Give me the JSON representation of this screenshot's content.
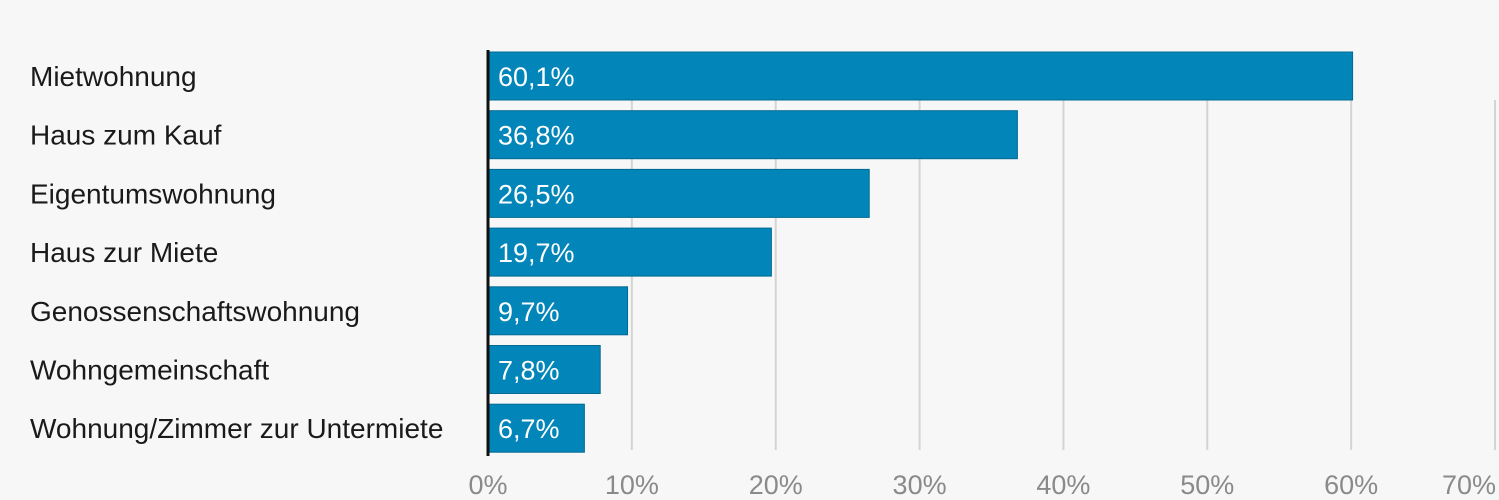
{
  "chart_data": {
    "type": "bar",
    "orientation": "horizontal",
    "categories": [
      "Mietwohnung",
      "Haus zum Kauf",
      "Eigentumswohnung",
      "Haus zur Miete",
      "Genossenschaftswohnung",
      "Wohngemeinschaft",
      "Wohnung/Zimmer zur Untermiete"
    ],
    "values": [
      60.1,
      36.8,
      26.5,
      19.7,
      9.7,
      7.8,
      6.7
    ],
    "value_labels": [
      "60,1%",
      "36,8%",
      "26,5%",
      "19,7%",
      "9,7%",
      "7,8%",
      "6,7%"
    ],
    "xlim": [
      0,
      70
    ],
    "xticks": [
      0,
      10,
      20,
      30,
      40,
      50,
      60,
      70
    ],
    "xtick_labels": [
      "0%",
      "10%",
      "20%",
      "30%",
      "40%",
      "50%",
      "60%",
      "70%"
    ],
    "grid": true,
    "bar_color": "#0285b8",
    "bar_border_color": "#026a93",
    "axis_color": "#111111"
  }
}
